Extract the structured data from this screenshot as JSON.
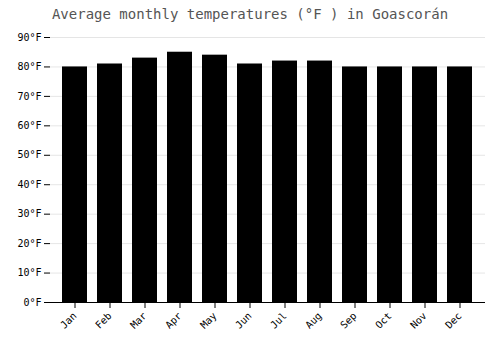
{
  "chart_data": {
    "type": "bar",
    "title": "Average monthly temperatures (°F ) in Goascorán",
    "categories": [
      "Jan",
      "Feb",
      "Mar",
      "Apr",
      "May",
      "Jun",
      "Jul",
      "Aug",
      "Sep",
      "Oct",
      "Nov",
      "Dec"
    ],
    "values": [
      80,
      81,
      83,
      85,
      84,
      81,
      82,
      82,
      80,
      80,
      80,
      80
    ],
    "ylim": [
      0,
      90
    ],
    "yticks": [
      {
        "value": 0,
        "label": "0°F"
      },
      {
        "value": 10,
        "label": "10°F"
      },
      {
        "value": 20,
        "label": "20°F"
      },
      {
        "value": 30,
        "label": "30°F"
      },
      {
        "value": 40,
        "label": "40°F"
      },
      {
        "value": 50,
        "label": "50°F"
      },
      {
        "value": 60,
        "label": "60°F"
      },
      {
        "value": 70,
        "label": "70°F"
      },
      {
        "value": 80,
        "label": "80°F"
      },
      {
        "value": 90,
        "label": "90°F"
      }
    ],
    "grid": true
  }
}
